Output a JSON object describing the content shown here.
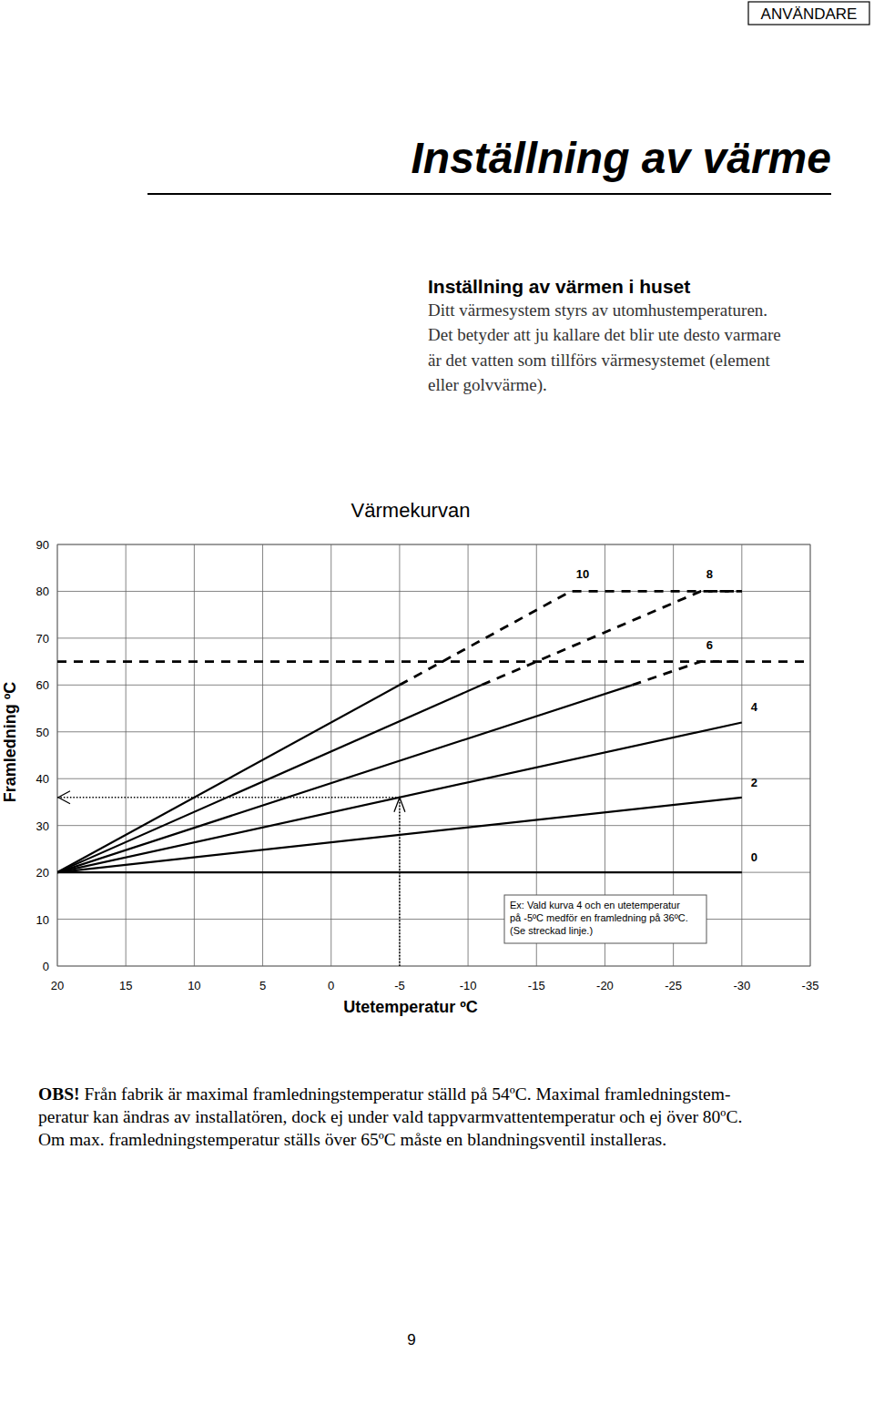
{
  "header": {
    "label": "ANVÄNDARE"
  },
  "title": "Inställning av värme",
  "section": {
    "heading": "Inställning av värmen i huset",
    "paragraph": [
      "Ditt värmesystem styrs av utomhustemperaturen.",
      "Det betyder att ju kallare det blir ute desto varmare",
      "är det vatten som tillförs värmesystemet (element",
      "eller golvvärme)."
    ]
  },
  "chart_data": {
    "type": "line",
    "title": "Värmekurvan",
    "x_label": "Utetemperatur ºC",
    "y_label": "Framledning ºC",
    "xlim": [
      20,
      -35
    ],
    "ylim": [
      0,
      90
    ],
    "xticks": [
      20,
      15,
      10,
      5,
      0,
      -5,
      -10,
      -15,
      -20,
      -25,
      -30,
      -35
    ],
    "yticks": [
      0,
      10,
      20,
      30,
      40,
      50,
      60,
      70,
      80,
      90
    ],
    "grid": true,
    "series": [
      {
        "name": "10",
        "color": "#000000",
        "line_style": "solid",
        "x": [
          20,
          -5
        ],
        "values": [
          20,
          60
        ]
      },
      {
        "color": "#000000",
        "line_style": "dashed",
        "x": [
          -5,
          -17.5,
          -30
        ],
        "values": [
          60,
          80,
          80
        ]
      },
      {
        "name": "8",
        "color": "#000000",
        "line_style": "solid",
        "x": [
          20,
          -11
        ],
        "values": [
          20,
          60
        ]
      },
      {
        "color": "#000000",
        "line_style": "dashed",
        "x": [
          -11,
          -27,
          -30
        ],
        "values": [
          60,
          80,
          80
        ]
      },
      {
        "name": "6",
        "color": "#000000",
        "line_style": "solid",
        "x": [
          20,
          -22
        ],
        "values": [
          20,
          60
        ]
      },
      {
        "color": "#000000",
        "line_style": "dashed",
        "x": [
          -22,
          -27,
          -30
        ],
        "values": [
          60,
          65,
          65
        ]
      },
      {
        "name": "4",
        "color": "#000000",
        "line_style": "solid",
        "x": [
          20,
          -30
        ],
        "values": [
          20,
          52
        ]
      },
      {
        "name": "2",
        "color": "#000000",
        "line_style": "solid",
        "x": [
          20,
          -30
        ],
        "values": [
          20,
          36
        ]
      },
      {
        "name": "0",
        "color": "#000000",
        "line_style": "solid",
        "x": [
          20,
          -30
        ],
        "values": [
          20,
          20
        ]
      },
      {
        "color": "#000000",
        "line_style": "dashed",
        "x": [
          20,
          -35
        ],
        "values": [
          65,
          65
        ]
      }
    ],
    "annotation": {
      "text": [
        "Ex: Vald kurva 4 och en utetemperatur",
        "på -5ºC medför en framledning på 36ºC.",
        "(Se streckad linje.)"
      ],
      "x": -5,
      "y": 36
    }
  },
  "note": {
    "lead": "OBS!",
    "lines": [
      " Från fabrik är maximal framledningstemperatur ställd på 54ºC. Maximal framledningstem-",
      "peratur kan ändras av installatören, dock ej under vald tappvarmvattentemperatur och ej över 80ºC.",
      "Om max. framledningstemperatur ställs över 65ºC måste en blandningsventil installeras."
    ]
  },
  "page_number": 9
}
